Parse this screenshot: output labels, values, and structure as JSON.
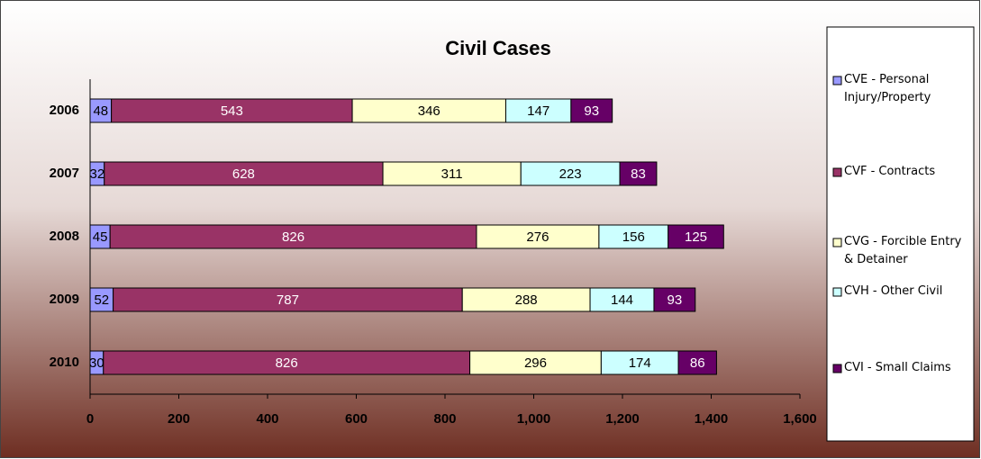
{
  "chart_data": {
    "type": "stacked-barh",
    "title": "Civil Cases",
    "categories": [
      "2006",
      "2007",
      "2008",
      "2009",
      "2010"
    ],
    "series": [
      {
        "name": "CVE - Personal Injury/Property",
        "color": "#9999ff",
        "values": [
          48,
          32,
          45,
          52,
          30
        ]
      },
      {
        "name": "CVF - Contracts",
        "color": "#993366",
        "values": [
          543,
          628,
          826,
          787,
          826
        ]
      },
      {
        "name": "CVG - Forcible Entry & Detainer",
        "color": "#ffffcc",
        "values": [
          346,
          311,
          276,
          288,
          296
        ]
      },
      {
        "name": "CVH - Other Civil",
        "color": "#ccffff",
        "values": [
          147,
          223,
          156,
          144,
          174
        ]
      },
      {
        "name": "CVI - Small Claims",
        "color": "#660066",
        "values": [
          93,
          83,
          125,
          93,
          86
        ]
      }
    ],
    "xlim": [
      0,
      1600
    ],
    "xticks": [
      0,
      200,
      400,
      600,
      800,
      {
        "value": 1000,
        "label": "1,000"
      },
      {
        "value": 1200,
        "label": "1,200"
      },
      {
        "value": 1400,
        "label": "1,400"
      },
      {
        "value": 1600,
        "label": "1,600"
      }
    ],
    "legend": "right"
  }
}
